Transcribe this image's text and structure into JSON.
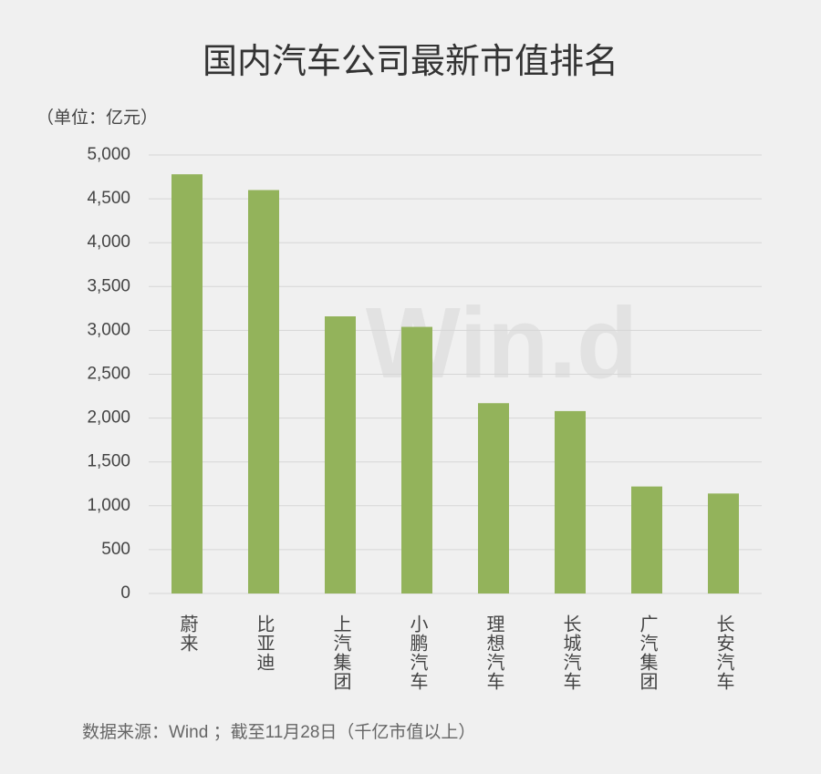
{
  "chart_data": {
    "type": "bar",
    "title": "国内汽车公司最新市值排名",
    "y_label": "（单位：亿元）",
    "source": "数据来源：Wind ；截至11月28日（千亿市值以上）",
    "watermark": "Win.d",
    "categories": [
      "蔚来",
      "比亚迪",
      "上汽集团",
      "小鹏汽车",
      "理想汽车",
      "长城汽车",
      "广汽集团",
      "长安汽车"
    ],
    "values": [
      4780,
      4600,
      3160,
      3040,
      2170,
      2080,
      1220,
      1140
    ],
    "color": "#93b35b",
    "ylim": [
      0,
      5000
    ],
    "yticks": [
      0,
      500,
      {
        "value": 1000,
        "label": "1,000"
      },
      {
        "value": 1500,
        "label": "1,500"
      },
      {
        "value": 2000,
        "label": "2,000"
      },
      {
        "value": 2500,
        "label": "2,500"
      },
      {
        "value": 3000,
        "label": "3,000"
      },
      {
        "value": 3500,
        "label": "3,500"
      },
      {
        "value": 4000,
        "label": "4,000"
      },
      {
        "value": 4500,
        "label": "4,500"
      },
      {
        "value": 5000,
        "label": "5,000"
      }
    ],
    "grid": true
  }
}
